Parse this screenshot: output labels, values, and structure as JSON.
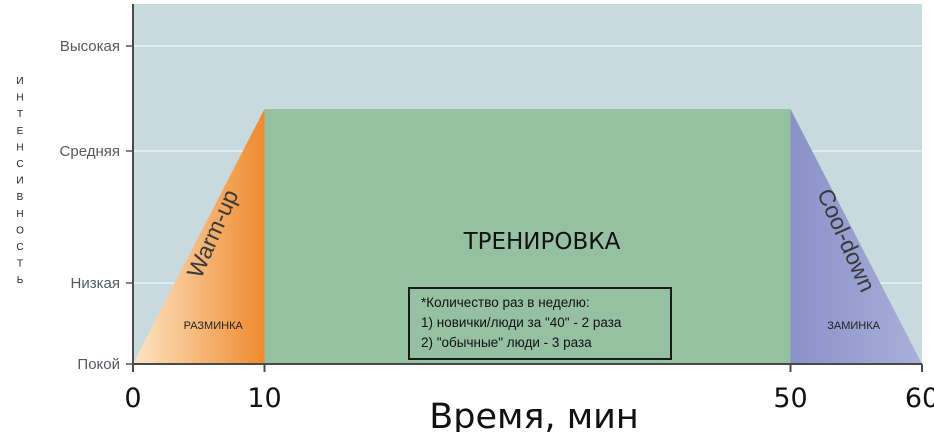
{
  "chart_data": {
    "type": "area",
    "title": "",
    "ylabel": "ИНТЕНСИВНОСТЬ",
    "xlabel": "Время, мин",
    "xlim": [
      0,
      60
    ],
    "x_ticks": [
      "0",
      "10",
      "50",
      "60"
    ],
    "y_levels": [
      {
        "label": "Покой",
        "value": 0
      },
      {
        "label": "Низкая",
        "value": 1
      },
      {
        "label": "Средняя",
        "value": 2
      },
      {
        "label": "Высокая",
        "value": 3
      }
    ],
    "ylim": [
      0,
      3
    ],
    "series": [
      {
        "x": [
          0,
          10,
          50,
          60
        ],
        "y": [
          0,
          2.4,
          2.4,
          0
        ]
      }
    ],
    "phases": [
      {
        "start": 0,
        "end": 10,
        "title": "Warm-up",
        "subtitle": "РАЗМИНКА",
        "color": "#f0892f"
      },
      {
        "start": 10,
        "end": 50,
        "title": "ТРЕНИРОВКА",
        "subtitle": "",
        "color": "#95c0a2"
      },
      {
        "start": 50,
        "end": 60,
        "title": "Cool-down",
        "subtitle": "ЗАМИНКА",
        "color": "#8e95cb"
      }
    ],
    "grid": true,
    "plot_background": "#c8dade"
  },
  "note": {
    "lines": [
      "*Количество раз в неделю:",
      "1) новички/люди за \"40\" - 2 раза",
      "2) \"обычные\" люди - 3 раза"
    ]
  }
}
